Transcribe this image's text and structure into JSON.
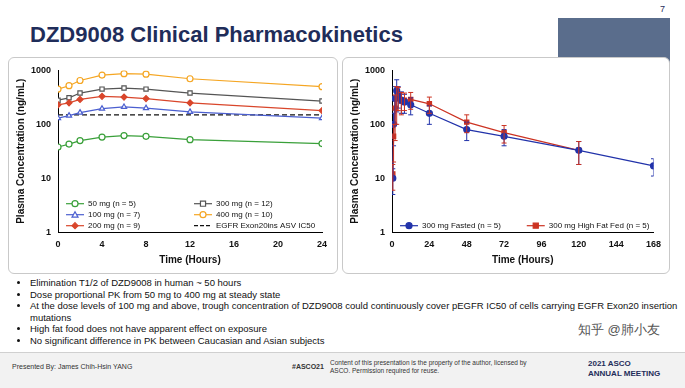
{
  "slide": {
    "title": "DZD9008 Clinical Pharmacokinetics",
    "page_number": "7",
    "bullets": [
      "Elimination T1/2 of DZD9008 in human ~ 50 hours",
      "Dose proportional PK from 50 mg to 400 mg at steady state",
      "At the dose levels of 100 mg and above, trough concentration of DZD9008 could continuously cover pEGFR IC50 of cells carrying EGFR Exon20 insertion mutations",
      "High fat food does not have apparent effect on exposure",
      "No significant difference in PK between Caucasian and Asian subjects"
    ],
    "footer": {
      "presenter": "Presented By: James Chih-Hsin YANG",
      "hashtag": "#ASCO21",
      "notice": "Content of this presentation is the property of the author, licensed by ASCO. Permission required for reuse.",
      "meeting": [
        "2021 ASCO",
        "ANNUAL MEETING"
      ]
    },
    "watermark": "知乎 @肺小友"
  },
  "chart_data": [
    {
      "type": "line",
      "x_label": "Time (Hours)",
      "y_label": "Plasma Concentration (ng/mL)",
      "x": [
        0,
        1,
        2,
        4,
        6,
        8,
        12,
        24
      ],
      "xlim": [
        0,
        24
      ],
      "xticks": [
        0,
        4,
        8,
        12,
        16,
        20,
        24
      ],
      "ylim": [
        1,
        1000
      ],
      "yticks": [
        1,
        10,
        100,
        1000
      ],
      "log": "y",
      "grid": false,
      "legend": "bottom",
      "series": [
        {
          "name": "50 mg (n = 5)",
          "color": "#3aa03a",
          "marker": "circle-open",
          "line_style": "solid",
          "values": [
            38,
            43,
            50,
            58,
            62,
            60,
            52,
            44
          ]
        },
        {
          "name": "100 mg (n = 7)",
          "color": "#4b5fd0",
          "marker": "triangle-open",
          "line_style": "solid",
          "values": [
            130,
            145,
            165,
            195,
            210,
            200,
            170,
            130
          ]
        },
        {
          "name": "200 mg (n = 9)",
          "color": "#d9462b",
          "marker": "diamond",
          "line_style": "solid",
          "values": [
            230,
            250,
            290,
            330,
            320,
            300,
            250,
            180
          ]
        },
        {
          "name": "300 mg (n = 12)",
          "color": "#555555",
          "marker": "square-open",
          "line_style": "solid",
          "values": [
            280,
            310,
            380,
            450,
            470,
            450,
            380,
            270
          ]
        },
        {
          "name": "400 mg (n = 10)",
          "color": "#f5a623",
          "marker": "circle-open",
          "line_style": "solid",
          "values": [
            450,
            520,
            650,
            820,
            870,
            850,
            700,
            500
          ]
        },
        {
          "name": "EGFR Exon20ins ASV IC50",
          "color": "#111111",
          "marker": "none",
          "line_style": "dashed",
          "values": [
            150,
            150,
            150,
            150,
            150,
            150,
            150,
            150
          ]
        }
      ]
    },
    {
      "type": "line",
      "x_label": "Time (Hours)",
      "y_label": "Plasma Concentration (ng/mL)",
      "x": [
        0.5,
        1,
        2,
        3,
        4,
        6,
        8,
        12,
        24,
        48,
        72,
        120,
        168
      ],
      "xlim": [
        0,
        168
      ],
      "xticks": [
        0,
        24,
        48,
        72,
        96,
        120,
        144,
        168
      ],
      "ylim": [
        1,
        1000
      ],
      "yticks": [
        1,
        10,
        100,
        1000
      ],
      "log": "y",
      "grid": false,
      "legend": "bottom",
      "series": [
        {
          "name": "300 mg Fasted (n = 5)",
          "color": "#2233aa",
          "marker": "circle",
          "line_style": "solid",
          "values": [
            10,
            100,
            300,
            420,
            350,
            280,
            260,
            230,
            160,
            80,
            60,
            33,
            17
          ],
          "errors": [
            5,
            60,
            200,
            250,
            150,
            120,
            100,
            80,
            60,
            30,
            20,
            15,
            6
          ]
        },
        {
          "name": "300 mg High Fat Fed (n = 5)",
          "color": "#cc3322",
          "marker": "square",
          "line_style": "solid",
          "values": [
            12,
            60,
            200,
            300,
            330,
            270,
            280,
            290,
            240,
            110,
            70,
            33,
            null
          ],
          "errors": [
            6,
            40,
            150,
            200,
            150,
            120,
            100,
            100,
            80,
            40,
            25,
            15,
            null
          ]
        }
      ]
    }
  ]
}
